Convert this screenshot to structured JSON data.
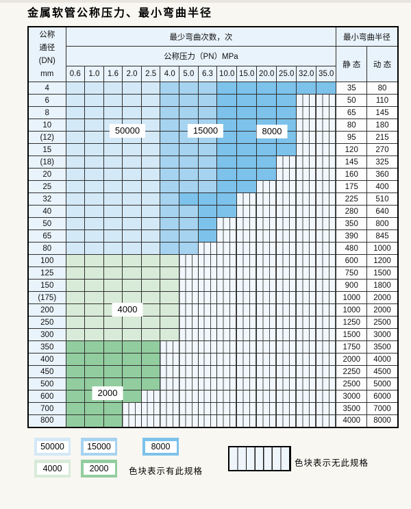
{
  "title": "金属软管公称压力、最小弯曲半径",
  "table": {
    "header": {
      "dn_lines": [
        "公称",
        "通径",
        "(DN)",
        "mm"
      ],
      "cycles_label": "最少弯曲次数，次",
      "pressure_label": "公称压力（PN）MPa",
      "radius_label": "最小弯曲半径",
      "static_label": "静 态",
      "dynamic_label": "动 态",
      "pressure_columns": [
        "0.6",
        "1.0",
        "1.6",
        "2.0",
        "2.5",
        "4.0",
        "5.0",
        "6.3",
        "10.0",
        "15.0",
        "20.0",
        "25.0",
        "32.0",
        "35.0"
      ]
    },
    "rows": [
      {
        "dn": "4",
        "bands": [
          [
            "b50000",
            4
          ],
          [
            "b15000",
            7
          ],
          [
            "b8000",
            13
          ]
        ],
        "static": "35",
        "dynamic": "80"
      },
      {
        "dn": "6",
        "bands": [
          [
            "b50000",
            4
          ],
          [
            "b15000",
            7
          ],
          [
            "b8000",
            11
          ]
        ],
        "static": "50",
        "dynamic": "110"
      },
      {
        "dn": "8",
        "bands": [
          [
            "b50000",
            4
          ],
          [
            "b15000",
            7
          ],
          [
            "b8000",
            11
          ]
        ],
        "static": "65",
        "dynamic": "145"
      },
      {
        "dn": "10",
        "bands": [
          [
            "b50000",
            4
          ],
          [
            "b15000",
            7
          ],
          [
            "b8000",
            11
          ]
        ],
        "static": "80",
        "dynamic": "180"
      },
      {
        "dn": "(12)",
        "bands": [
          [
            "b50000",
            4
          ],
          [
            "b15000",
            7
          ],
          [
            "b8000",
            11
          ]
        ],
        "static": "95",
        "dynamic": "215"
      },
      {
        "dn": "15",
        "bands": [
          [
            "b50000",
            4
          ],
          [
            "b15000",
            7
          ],
          [
            "b8000",
            11
          ]
        ],
        "static": "120",
        "dynamic": "270"
      },
      {
        "dn": "(18)",
        "bands": [
          [
            "b50000",
            4
          ],
          [
            "b15000",
            7
          ],
          [
            "b8000",
            10
          ]
        ],
        "static": "145",
        "dynamic": "325"
      },
      {
        "dn": "20",
        "bands": [
          [
            "b50000",
            4
          ],
          [
            "b15000",
            7
          ],
          [
            "b8000",
            10
          ]
        ],
        "static": "160",
        "dynamic": "360"
      },
      {
        "dn": "25",
        "bands": [
          [
            "b50000",
            4
          ],
          [
            "b15000",
            7
          ],
          [
            "b8000",
            9
          ]
        ],
        "static": "175",
        "dynamic": "400"
      },
      {
        "dn": "32",
        "bands": [
          [
            "b50000",
            4
          ],
          [
            "b15000",
            5
          ],
          [
            "b8000",
            8
          ]
        ],
        "static": "225",
        "dynamic": "510"
      },
      {
        "dn": "40",
        "bands": [
          [
            "b50000",
            4
          ],
          [
            "b15000",
            6
          ],
          [
            "b8000",
            8
          ]
        ],
        "static": "280",
        "dynamic": "640"
      },
      {
        "dn": "50",
        "bands": [
          [
            "b50000",
            4
          ],
          [
            "b15000",
            6
          ],
          [
            "b8000",
            7
          ]
        ],
        "static": "350",
        "dynamic": "800"
      },
      {
        "dn": "65",
        "bands": [
          [
            "b50000",
            4
          ],
          [
            "b15000",
            6
          ],
          [
            "b8000",
            7
          ]
        ],
        "static": "390",
        "dynamic": "845"
      },
      {
        "dn": "80",
        "bands": [
          [
            "b50000",
            4
          ],
          [
            "b15000",
            6
          ]
        ],
        "static": "480",
        "dynamic": "1000"
      },
      {
        "dn": "100",
        "bands": [
          [
            "b4000",
            5
          ]
        ],
        "static": "600",
        "dynamic": "1200"
      },
      {
        "dn": "125",
        "bands": [
          [
            "b4000",
            5
          ]
        ],
        "static": "750",
        "dynamic": "1500"
      },
      {
        "dn": "150",
        "bands": [
          [
            "b4000",
            5
          ]
        ],
        "static": "900",
        "dynamic": "1800"
      },
      {
        "dn": "(175)",
        "bands": [
          [
            "b4000",
            5
          ]
        ],
        "static": "1000",
        "dynamic": "2000"
      },
      {
        "dn": "200",
        "bands": [
          [
            "b4000",
            5
          ]
        ],
        "static": "1000",
        "dynamic": "2000"
      },
      {
        "dn": "250",
        "bands": [
          [
            "b4000",
            5
          ]
        ],
        "static": "1250",
        "dynamic": "2500"
      },
      {
        "dn": "300",
        "bands": [
          [
            "b4000",
            5
          ]
        ],
        "static": "1500",
        "dynamic": "3000"
      },
      {
        "dn": "350",
        "bands": [
          [
            "b2000",
            4
          ]
        ],
        "static": "1750",
        "dynamic": "3500"
      },
      {
        "dn": "400",
        "bands": [
          [
            "b2000",
            4
          ]
        ],
        "static": "2000",
        "dynamic": "4000"
      },
      {
        "dn": "450",
        "bands": [
          [
            "b2000",
            4
          ]
        ],
        "static": "2250",
        "dynamic": "4500"
      },
      {
        "dn": "500",
        "bands": [
          [
            "b2000",
            4
          ]
        ],
        "static": "2500",
        "dynamic": "5000"
      },
      {
        "dn": "600",
        "bands": [
          [
            "b2000",
            3
          ]
        ],
        "static": "3000",
        "dynamic": "6000"
      },
      {
        "dn": "700",
        "bands": [
          [
            "b2000",
            2
          ]
        ],
        "static": "3500",
        "dynamic": "7000"
      },
      {
        "dn": "800",
        "bands": [
          [
            "b2000",
            2
          ]
        ],
        "static": "4000",
        "dynamic": "8000"
      }
    ]
  },
  "region_labels": [
    {
      "text": "50000"
    },
    {
      "text": "15000"
    },
    {
      "text": "8000"
    },
    {
      "text": "4000"
    },
    {
      "text": "2000"
    }
  ],
  "legend": {
    "blocks": [
      {
        "label": "50000",
        "band": "b50000"
      },
      {
        "label": "15000",
        "band": "b15000"
      },
      {
        "label": "8000",
        "band": "b8000"
      },
      {
        "label": "4000",
        "band": "b4000"
      },
      {
        "label": "2000",
        "band": "b2000"
      }
    ],
    "has_spec_text": "色块表示有此规格",
    "no_spec_text": "色块表示无此规格"
  },
  "colors": {
    "b50000": "#d4e9f7",
    "b15000": "#a6d3f0",
    "b8000": "#7cc2eb",
    "b4000": "#d8ebd8",
    "b2000": "#92cd9f"
  }
}
